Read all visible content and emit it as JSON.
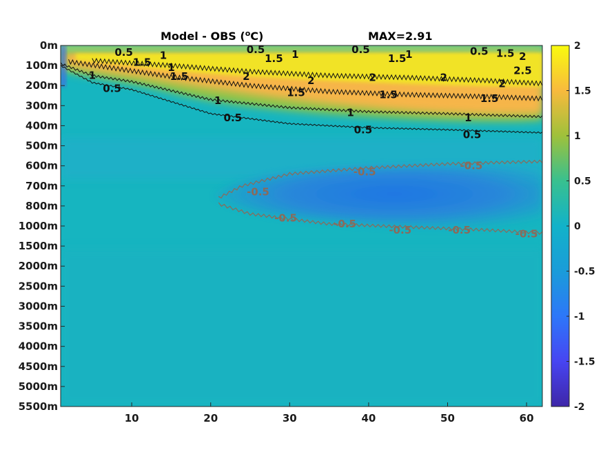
{
  "chart_data": {
    "type": "heatmap",
    "title_left": "Model - OBS (",
    "title_unit_sup": "o",
    "title_unit_rest": "C)",
    "title_right": "MAX=2.91",
    "xlabel": "",
    "ylabel": "",
    "xlim": [
      1,
      62
    ],
    "x_ticks": [
      10,
      20,
      30,
      40,
      50,
      60
    ],
    "y_ticks": [
      "0m",
      "100m",
      "200m",
      "300m",
      "400m",
      "500m",
      "600m",
      "700m",
      "800m",
      "1000m",
      "1500m",
      "2000m",
      "2500m",
      "3000m",
      "3500m",
      "4000m",
      "4500m",
      "5000m",
      "5500m"
    ],
    "colorbar": {
      "range": [
        -2,
        2
      ],
      "ticks": [
        "2",
        "1.5",
        "1",
        "0.5",
        "0",
        "-0.5",
        "-1",
        "-1.5",
        "-2"
      ],
      "colormap": "parula"
    },
    "positive_contours": [
      {
        "level": 0.5,
        "points": [
          [
            1,
            1.0
          ],
          [
            5,
            1.85
          ],
          [
            10,
            2.2
          ],
          [
            20,
            3.4
          ],
          [
            30,
            3.9
          ],
          [
            40,
            4.1
          ],
          [
            50,
            4.2
          ],
          [
            62,
            4.35
          ]
        ]
      },
      {
        "level": 1,
        "points": [
          [
            1,
            0.9
          ],
          [
            5,
            1.5
          ],
          [
            10,
            1.8
          ],
          [
            20,
            2.7
          ],
          [
            30,
            3.1
          ],
          [
            40,
            3.3
          ],
          [
            50,
            3.4
          ],
          [
            62,
            3.55
          ]
        ]
      },
      {
        "level": 1.5,
        "points": [
          [
            2,
            0.8
          ],
          [
            8,
            1.15
          ],
          [
            15,
            1.55
          ],
          [
            25,
            2.0
          ],
          [
            35,
            2.3
          ],
          [
            45,
            2.45
          ],
          [
            55,
            2.55
          ],
          [
            62,
            2.65
          ]
        ]
      },
      {
        "level": 2,
        "points": [
          [
            5,
            0.75
          ],
          [
            15,
            1.0
          ],
          [
            25,
            1.3
          ],
          [
            35,
            1.5
          ],
          [
            45,
            1.6
          ],
          [
            55,
            1.75
          ],
          [
            62,
            1.9
          ]
        ]
      }
    ],
    "negative_contours": [
      {
        "level": -0.5,
        "points": [
          [
            21,
            7.6
          ],
          [
            24,
            7.0
          ],
          [
            30,
            6.4
          ],
          [
            40,
            6.1
          ],
          [
            50,
            5.9
          ],
          [
            60,
            5.8
          ],
          [
            62,
            5.78
          ]
        ]
      },
      {
        "level": -0.5,
        "points": [
          [
            21,
            7.9
          ],
          [
            25,
            8.4
          ],
          [
            35,
            8.9
          ],
          [
            45,
            9.05
          ],
          [
            55,
            9.2
          ],
          [
            62,
            9.35
          ]
        ]
      }
    ],
    "contour_labels": [
      {
        "text": "0.5",
        "x": 9,
        "y": 0.35
      },
      {
        "text": "1.5",
        "x": 11.3,
        "y": 0.85
      },
      {
        "text": "1",
        "x": 14,
        "y": 0.5
      },
      {
        "text": "1",
        "x": 15,
        "y": 1.1
      },
      {
        "text": "1.5",
        "x": 16,
        "y": 1.55
      },
      {
        "text": "1",
        "x": 5,
        "y": 1.5
      },
      {
        "text": "0.5",
        "x": 7.5,
        "y": 2.15
      },
      {
        "text": "0.5",
        "x": 25.7,
        "y": 0.2
      },
      {
        "text": "1.5",
        "x": 28,
        "y": 0.65
      },
      {
        "text": "1",
        "x": 30.7,
        "y": 0.45
      },
      {
        "text": "2",
        "x": 24.5,
        "y": 1.55
      },
      {
        "text": "2",
        "x": 32.7,
        "y": 1.75
      },
      {
        "text": "1.5",
        "x": 30.8,
        "y": 2.35
      },
      {
        "text": "1",
        "x": 20.9,
        "y": 2.75
      },
      {
        "text": "0.5",
        "x": 22.8,
        "y": 3.6
      },
      {
        "text": "0.5",
        "x": 39,
        "y": 0.2
      },
      {
        "text": "1.5",
        "x": 43.6,
        "y": 0.65
      },
      {
        "text": "1",
        "x": 45.1,
        "y": 0.45
      },
      {
        "text": "2",
        "x": 40.5,
        "y": 1.6
      },
      {
        "text": "2",
        "x": 49.5,
        "y": 1.6
      },
      {
        "text": "1.5",
        "x": 42.5,
        "y": 2.45
      },
      {
        "text": "1",
        "x": 37.7,
        "y": 3.35
      },
      {
        "text": "0.5",
        "x": 39.3,
        "y": 4.2
      },
      {
        "text": "0.5",
        "x": 54,
        "y": 0.3
      },
      {
        "text": "1.5",
        "x": 57.3,
        "y": 0.4
      },
      {
        "text": "2",
        "x": 59.5,
        "y": 0.55
      },
      {
        "text": "2.5",
        "x": 59.5,
        "y": 1.25
      },
      {
        "text": "2",
        "x": 56.9,
        "y": 1.9
      },
      {
        "text": "1.5",
        "x": 55.3,
        "y": 2.65
      },
      {
        "text": "1",
        "x": 52.6,
        "y": 3.6
      },
      {
        "text": "0.5",
        "x": 53.1,
        "y": 4.45
      },
      {
        "text": "-0.5",
        "x": 26,
        "y": 7.3
      },
      {
        "text": "-0.5",
        "x": 39.5,
        "y": 6.3
      },
      {
        "text": "-0.5",
        "x": 53,
        "y": 6.0
      },
      {
        "text": "-0.5",
        "x": 29.5,
        "y": 8.6
      },
      {
        "text": "-0.5",
        "x": 37,
        "y": 8.9
      },
      {
        "text": "-0.5",
        "x": 44,
        "y": 9.2
      },
      {
        "text": "-0.5",
        "x": 51.5,
        "y": 9.2
      },
      {
        "text": "-0.5",
        "x": 60,
        "y": 9.4
      }
    ]
  }
}
